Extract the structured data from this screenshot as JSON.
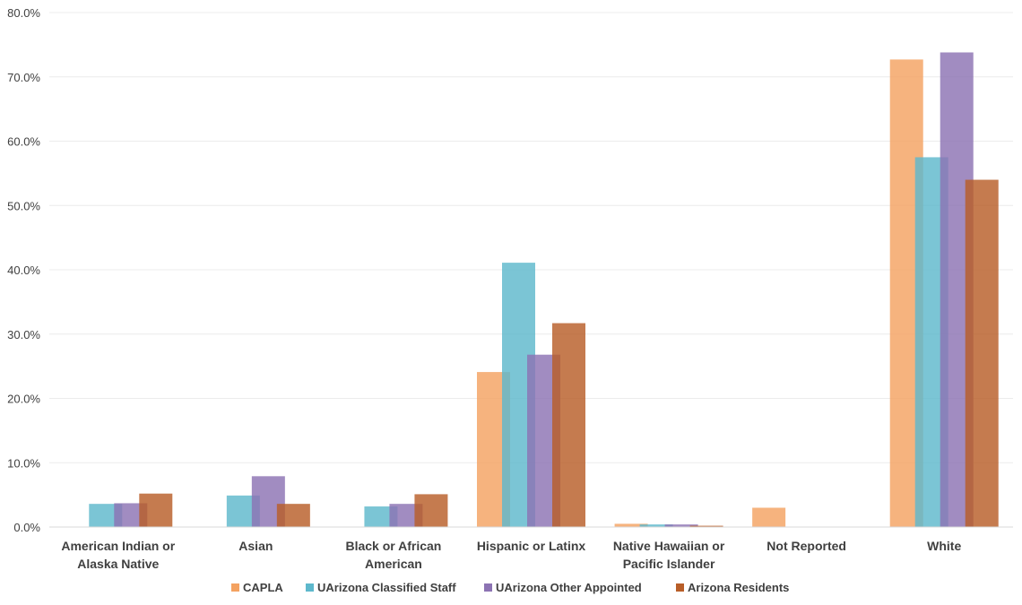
{
  "chart_data": {
    "type": "bar",
    "title": "",
    "xlabel": "",
    "ylabel": "",
    "ylim": [
      0,
      80
    ],
    "yticks": [
      "0.0%",
      "10.0%",
      "20.0%",
      "30.0%",
      "40.0%",
      "50.0%",
      "60.0%",
      "70.0%",
      "80.0%"
    ],
    "grid": true,
    "legend_position": "bottom",
    "categories": [
      [
        "American Indian or",
        "Alaska Native"
      ],
      [
        "Asian"
      ],
      [
        "Black or African",
        "American"
      ],
      [
        "Hispanic or Latinx"
      ],
      [
        "Native Hawaiian or",
        "Pacific Islander"
      ],
      [
        "Not Reported"
      ],
      [
        "White"
      ]
    ],
    "series": [
      {
        "name": "CAPLA",
        "color": "#F4A261",
        "values": [
          0,
          0,
          0,
          24.1,
          0.5,
          3.0,
          72.7
        ]
      },
      {
        "name": "UArizona Classified Staff",
        "color": "#5EB8CC",
        "values": [
          3.6,
          4.9,
          3.2,
          41.1,
          0.4,
          0,
          57.5
        ]
      },
      {
        "name": "UArizona Other Appointed",
        "color": "#8C73B3",
        "values": [
          3.7,
          7.9,
          3.6,
          26.8,
          0.4,
          0,
          73.8
        ]
      },
      {
        "name": "Arizona Residents",
        "color": "#B85E28",
        "values": [
          5.2,
          3.6,
          5.1,
          31.7,
          0.2,
          0,
          54.0
        ]
      }
    ]
  }
}
